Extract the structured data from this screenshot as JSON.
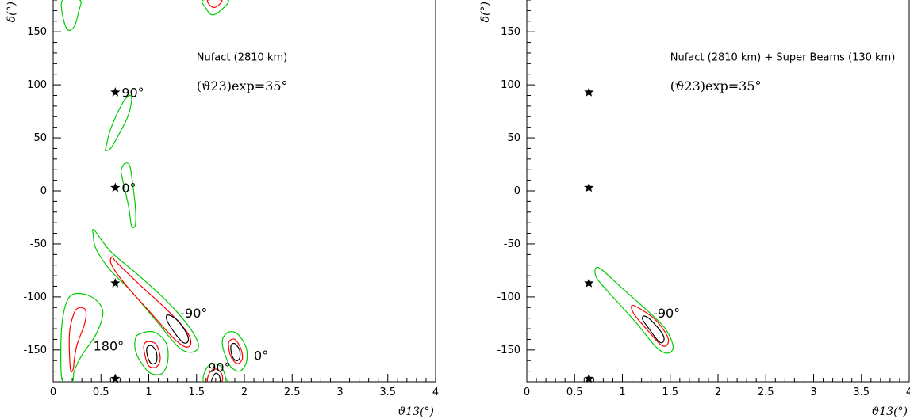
{
  "chart_data": [
    {
      "type": "contour",
      "title": "Nufact (2810 km)",
      "subtitle": "(ϑ23)exp=35°",
      "xlabel": "ϑ13(°)",
      "ylabel": "δ(°)",
      "xlim": [
        0,
        4
      ],
      "ylim": [
        -180,
        180
      ],
      "xticks": [
        "0",
        "0.5",
        "1",
        "1.5",
        "2",
        "2.5",
        "3",
        "3.5",
        "4"
      ],
      "yticks": [
        "-150",
        "-100",
        "-50",
        "0",
        "50",
        "100",
        "150"
      ],
      "stars": [
        {
          "x": 0.65,
          "y": 93,
          "label": "90°"
        },
        {
          "x": 0.65,
          "y": 3,
          "label": "0°"
        },
        {
          "x": 0.65,
          "y": -87,
          "label": ""
        },
        {
          "x": 0.65,
          "y": -177,
          "label": ""
        }
      ],
      "annotations": [
        {
          "x": 1.33,
          "y": -115,
          "label": "-90°"
        },
        {
          "x": 0.42,
          "y": -146,
          "label": "180°"
        },
        {
          "x": 1.62,
          "y": -166,
          "label": "90°"
        },
        {
          "x": 2.1,
          "y": -155,
          "label": "0°"
        }
      ],
      "contour_colors": {
        "inner": "#000000",
        "middle": "#ff0000",
        "outer": "#00cc00"
      },
      "regions": [
        {
          "level": "outer",
          "points": [
            [
              0.1,
              180
            ],
            [
              0.1,
              165
            ],
            [
              0.15,
              152
            ],
            [
              0.22,
              155
            ],
            [
              0.27,
              170
            ],
            [
              0.28,
              180
            ]
          ]
        },
        {
          "level": "outer",
          "points": [
            [
              1.57,
              180
            ],
            [
              1.6,
              172
            ],
            [
              1.66,
              166
            ],
            [
              1.75,
              170
            ],
            [
              1.83,
              180
            ]
          ]
        },
        {
          "level": "middle",
          "points": [
            [
              1.62,
              180
            ],
            [
              1.64,
              175
            ],
            [
              1.69,
              173
            ],
            [
              1.74,
              176
            ],
            [
              1.76,
              180
            ]
          ]
        },
        {
          "level": "outer",
          "points": [
            [
              0.55,
              40
            ],
            [
              0.6,
              58
            ],
            [
              0.72,
              82
            ],
            [
              0.8,
              90
            ],
            [
              0.82,
              85
            ],
            [
              0.78,
              70
            ],
            [
              0.68,
              52
            ],
            [
              0.6,
              40
            ],
            [
              0.55,
              38
            ]
          ]
        },
        {
          "level": "outer",
          "points": [
            [
              0.72,
              22
            ],
            [
              0.75,
              26
            ],
            [
              0.8,
              24
            ],
            [
              0.83,
              8
            ],
            [
              0.86,
              -15
            ],
            [
              0.86,
              -32
            ],
            [
              0.82,
              -33
            ],
            [
              0.79,
              -15
            ],
            [
              0.74,
              5
            ],
            [
              0.71,
              18
            ]
          ]
        },
        {
          "level": "outer",
          "points": [
            [
              0.43,
              -37
            ],
            [
              0.6,
              -57
            ],
            [
              0.9,
              -80
            ],
            [
              1.2,
              -105
            ],
            [
              1.42,
              -128
            ],
            [
              1.52,
              -145
            ],
            [
              1.46,
              -152
            ],
            [
              1.32,
              -148
            ],
            [
              1.1,
              -125
            ],
            [
              0.82,
              -95
            ],
            [
              0.6,
              -75
            ],
            [
              0.45,
              -55
            ],
            [
              0.42,
              -42
            ]
          ]
        },
        {
          "level": "middle",
          "points": [
            [
              0.62,
              -62
            ],
            [
              0.66,
              -67
            ],
            [
              0.9,
              -88
            ],
            [
              1.2,
              -113
            ],
            [
              1.4,
              -133
            ],
            [
              1.44,
              -144
            ],
            [
              1.38,
              -147
            ],
            [
              1.25,
              -138
            ],
            [
              1.0,
              -113
            ],
            [
              0.8,
              -93
            ],
            [
              0.66,
              -77
            ],
            [
              0.6,
              -67
            ]
          ]
        },
        {
          "level": "inner",
          "points": [
            [
              1.2,
              -117
            ],
            [
              1.3,
              -122
            ],
            [
              1.4,
              -135
            ],
            [
              1.41,
              -142
            ],
            [
              1.36,
              -143
            ],
            [
              1.28,
              -135
            ],
            [
              1.19,
              -122
            ]
          ]
        },
        {
          "level": "outer",
          "points": [
            [
              0.1,
              -180
            ],
            [
              0.08,
              -155
            ],
            [
              0.1,
              -120
            ],
            [
              0.17,
              -100
            ],
            [
              0.3,
              -97
            ],
            [
              0.45,
              -103
            ],
            [
              0.52,
              -115
            ],
            [
              0.45,
              -135
            ],
            [
              0.3,
              -155
            ],
            [
              0.22,
              -170
            ],
            [
              0.2,
              -180
            ]
          ]
        },
        {
          "level": "middle",
          "points": [
            [
              0.18,
              -168
            ],
            [
              0.17,
              -135
            ],
            [
              0.22,
              -115
            ],
            [
              0.28,
              -110
            ],
            [
              0.34,
              -113
            ],
            [
              0.33,
              -125
            ],
            [
              0.25,
              -145
            ],
            [
              0.22,
              -160
            ],
            [
              0.21,
              -168
            ]
          ]
        },
        {
          "level": "outer",
          "points": [
            [
              0.86,
              -140
            ],
            [
              0.9,
              -135
            ],
            [
              1.05,
              -133
            ],
            [
              1.18,
              -143
            ],
            [
              1.2,
              -160
            ],
            [
              1.14,
              -172
            ],
            [
              1.02,
              -172
            ],
            [
              0.92,
              -162
            ],
            [
              0.86,
              -150
            ]
          ]
        },
        {
          "level": "middle",
          "points": [
            [
              0.95,
              -145
            ],
            [
              1.0,
              -142
            ],
            [
              1.08,
              -145
            ],
            [
              1.12,
              -158
            ],
            [
              1.08,
              -166
            ],
            [
              1.0,
              -165
            ],
            [
              0.96,
              -155
            ]
          ]
        },
        {
          "level": "inner",
          "points": [
            [
              0.98,
              -148
            ],
            [
              1.03,
              -146
            ],
            [
              1.08,
              -152
            ],
            [
              1.08,
              -161
            ],
            [
              1.03,
              -163
            ],
            [
              0.99,
              -157
            ]
          ]
        },
        {
          "level": "outer",
          "points": [
            [
              1.78,
              -138
            ],
            [
              1.84,
              -133
            ],
            [
              1.93,
              -135
            ],
            [
              2.02,
              -148
            ],
            [
              2.02,
              -162
            ],
            [
              1.95,
              -170
            ],
            [
              1.86,
              -166
            ],
            [
              1.8,
              -155
            ],
            [
              1.77,
              -145
            ]
          ]
        },
        {
          "level": "middle",
          "points": [
            [
              1.84,
              -142
            ],
            [
              1.9,
              -140
            ],
            [
              1.96,
              -148
            ],
            [
              1.98,
              -158
            ],
            [
              1.93,
              -163
            ],
            [
              1.87,
              -158
            ],
            [
              1.84,
              -150
            ]
          ]
        },
        {
          "level": "inner",
          "points": [
            [
              1.86,
              -146
            ],
            [
              1.9,
              -144
            ],
            [
              1.95,
              -150
            ],
            [
              1.95,
              -158
            ],
            [
              1.91,
              -160
            ],
            [
              1.87,
              -155
            ]
          ]
        },
        {
          "level": "outer",
          "points": [
            [
              1.58,
              -180
            ],
            [
              1.6,
              -168
            ],
            [
              1.67,
              -163
            ],
            [
              1.76,
              -166
            ],
            [
              1.8,
              -175
            ],
            [
              1.8,
              -180
            ]
          ]
        },
        {
          "level": "middle",
          "points": [
            [
              1.62,
              -180
            ],
            [
              1.64,
              -171
            ],
            [
              1.7,
              -168
            ],
            [
              1.76,
              -172
            ],
            [
              1.76,
              -180
            ]
          ]
        },
        {
          "level": "inner",
          "points": [
            [
              1.66,
              -180
            ],
            [
              1.68,
              -174
            ],
            [
              1.71,
              -172
            ],
            [
              1.74,
              -175
            ],
            [
              1.74,
              -180
            ]
          ]
        }
      ]
    },
    {
      "type": "contour",
      "title": "Nufact (2810 km) + Super Beams (130 km)",
      "subtitle": "(ϑ23)exp=35°",
      "xlabel": "ϑ13(°)",
      "ylabel": "δ(°)",
      "xlim": [
        0,
        4
      ],
      "ylim": [
        -180,
        180
      ],
      "xticks": [
        "0",
        "0.5",
        "1",
        "1.5",
        "2",
        "2.5",
        "3",
        "3.5",
        "4"
      ],
      "yticks": [
        "-150",
        "-100",
        "-50",
        "0",
        "50",
        "100",
        "150"
      ],
      "stars": [
        {
          "x": 0.65,
          "y": 93,
          "label": ""
        },
        {
          "x": 0.65,
          "y": 3,
          "label": ""
        },
        {
          "x": 0.65,
          "y": -87,
          "label": ""
        },
        {
          "x": 0.65,
          "y": -177,
          "label": ""
        }
      ],
      "annotations": [
        {
          "x": 1.32,
          "y": -115,
          "label": "-90°"
        }
      ],
      "contour_colors": {
        "inner": "#000000",
        "middle": "#ff0000",
        "outer": "#00cc00"
      },
      "regions": [
        {
          "level": "outer",
          "points": [
            [
              0.72,
              -73
            ],
            [
              0.78,
              -74
            ],
            [
              1.0,
              -92
            ],
            [
              1.25,
              -112
            ],
            [
              1.45,
              -130
            ],
            [
              1.53,
              -147
            ],
            [
              1.47,
              -153
            ],
            [
              1.35,
              -147
            ],
            [
              1.15,
              -125
            ],
            [
              0.95,
              -105
            ],
            [
              0.78,
              -88
            ],
            [
              0.72,
              -80
            ]
          ]
        },
        {
          "level": "middle",
          "points": [
            [
              1.1,
              -108
            ],
            [
              1.2,
              -112
            ],
            [
              1.35,
              -122
            ],
            [
              1.47,
              -137
            ],
            [
              1.47,
              -145
            ],
            [
              1.4,
              -145
            ],
            [
              1.25,
              -130
            ],
            [
              1.12,
              -116
            ]
          ]
        },
        {
          "level": "inner",
          "points": [
            [
              1.23,
              -118
            ],
            [
              1.3,
              -122
            ],
            [
              1.42,
              -135
            ],
            [
              1.43,
              -142
            ],
            [
              1.38,
              -142
            ],
            [
              1.27,
              -129
            ],
            [
              1.21,
              -121
            ]
          ]
        }
      ]
    }
  ]
}
